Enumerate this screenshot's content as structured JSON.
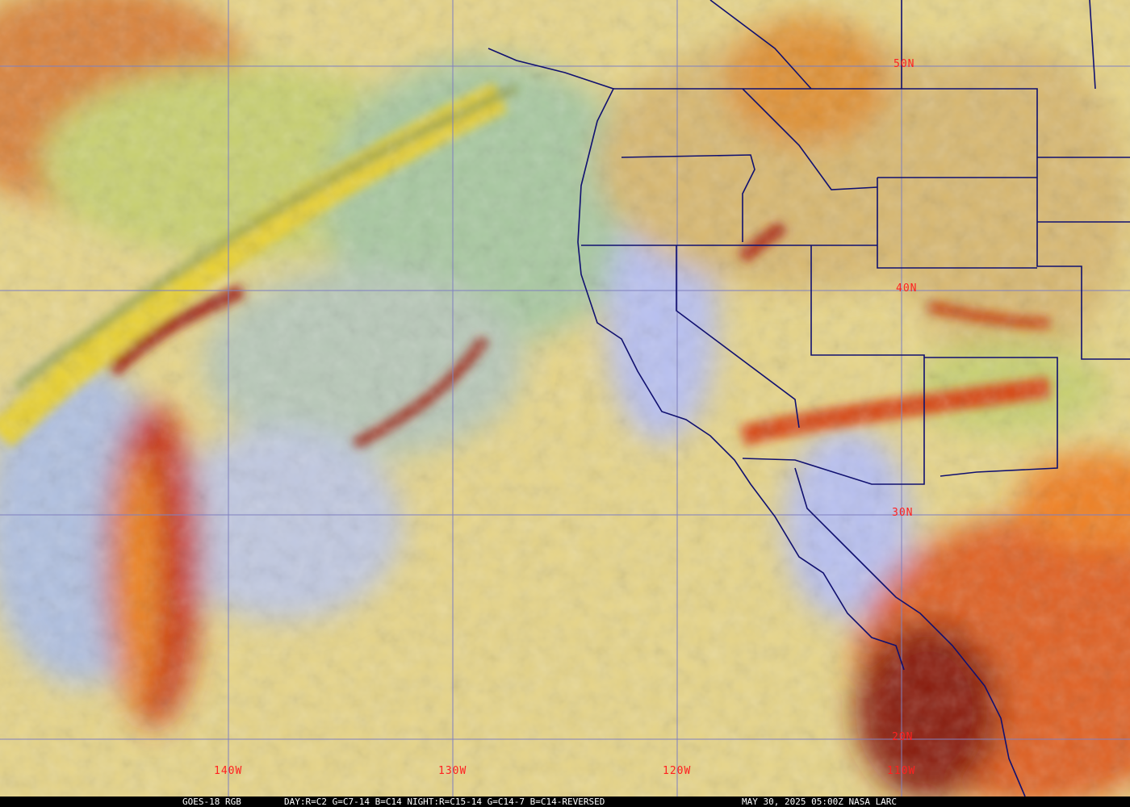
{
  "map": {
    "satellite": "GOES-18",
    "product": "RGB",
    "lat_labels": [
      "50N",
      "40N",
      "30N",
      "20N"
    ],
    "lon_labels": [
      "140W",
      "130W",
      "120W",
      "110W"
    ],
    "colors": {
      "grid": "#8080c0",
      "borders": "#101070",
      "labels": "#ff2020"
    }
  },
  "caption": {
    "title": "GOES-18 RGB",
    "recipe": "DAY:R=C2 G=C7-14 B=C14 NIGHT:R=C15-14 G=C14-7 B=C14-REVERSED",
    "timestamp": "MAY 30, 2025 05:00Z NASA LARC"
  }
}
